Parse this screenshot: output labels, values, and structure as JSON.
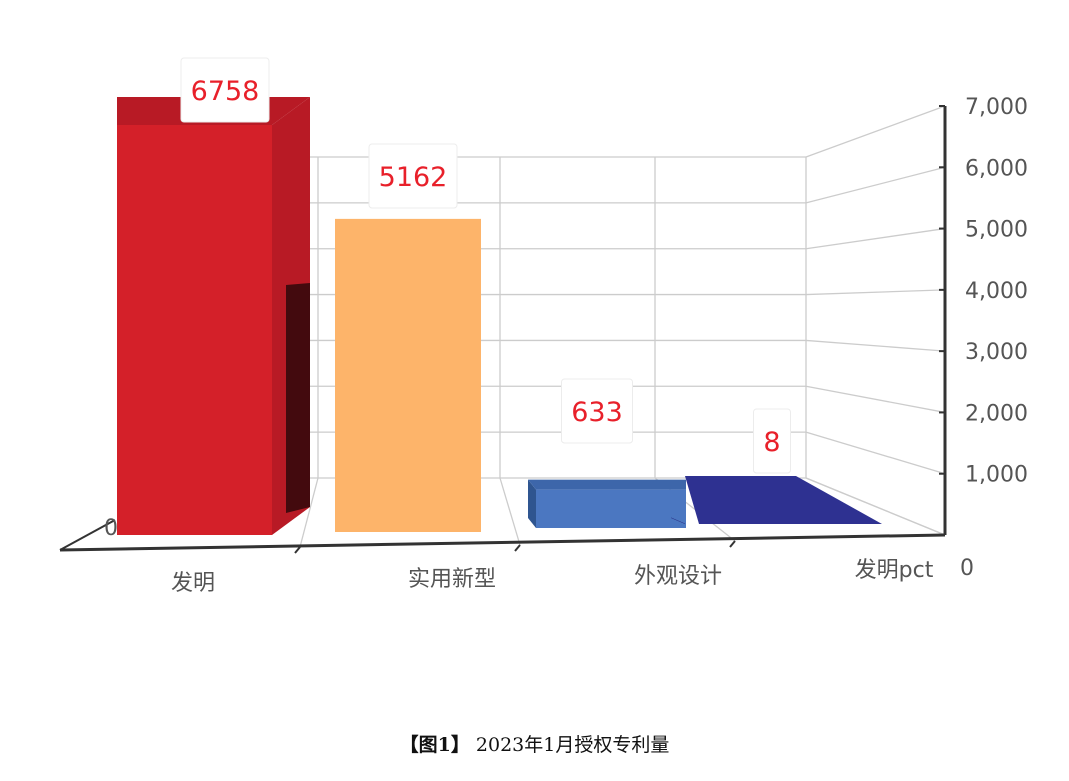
{
  "chart_data": {
    "type": "bar",
    "categories": [
      "发明",
      "实用新型",
      "外观设计",
      "发明pct"
    ],
    "values": [
      6758,
      5162,
      633,
      8
    ],
    "y_ticks": [
      "7,000",
      "6,000",
      "5,000",
      "4,000",
      "3,000",
      "2,000",
      "1,000",
      "0"
    ],
    "ylim": [
      0,
      7000
    ],
    "left_axis_zero": "0",
    "data_labels": [
      "6758",
      "5162",
      "633",
      "8"
    ],
    "colors": [
      "#d42029",
      "#fdb46a",
      "#4b77c1",
      "#2e3191"
    ],
    "grid": true,
    "legend": "none"
  },
  "caption": {
    "figure_tag": "【图1】",
    "text": "2023年1月授权专利量"
  }
}
